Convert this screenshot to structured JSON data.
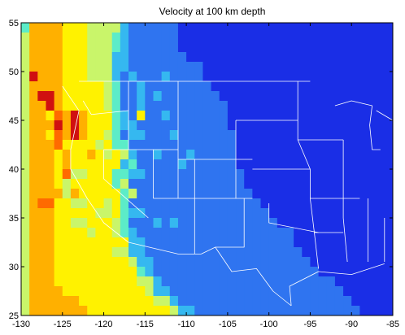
{
  "chart_data": {
    "type": "heatmap",
    "title": "Velocity at 100 km depth",
    "xlabel": "",
    "ylabel": "",
    "xlim": [
      -130,
      -85
    ],
    "ylim": [
      25,
      55
    ],
    "x_ticks": [
      -130,
      -125,
      -120,
      -115,
      -110,
      -105,
      -100,
      -95,
      -90,
      -85
    ],
    "y_ticks": [
      25,
      30,
      35,
      40,
      45,
      50,
      55
    ],
    "x_tick_labels": [
      "-130",
      "-125",
      "-120",
      "-115",
      "-110",
      "-105",
      "-100",
      "-95",
      "-90",
      "-85"
    ],
    "y_tick_labels": [
      "25",
      "30",
      "35",
      "40",
      "45",
      "50",
      "55"
    ],
    "grid": false,
    "colormap": "jet",
    "lon_step": 1,
    "lat_step": 1,
    "rows_top_to_bottom": [
      "4777766655553222222111111111111111111111111111",
      "5777766655543222222111111111111111111111111111",
      "5777766655543222222111111111111111111111111111",
      "5777766655533222222211111111111111111111111111",
      "5777766655533222222222111111111111111111111111",
      "5977766655532322232222111111111111111111111111",
      "5777766666542232222222211111111111111111111111",
      "5799766666542232322222221111111111111111111111",
      "5779766666542232222222222111111111111111111111",
      "5776879766643262232222222111111111111111111111",
      "5777979766643322222222222111111111111111111111",
      "5776879766542332223222222211111111111111111111",
      "5777866665644222222222222211111111111111111111",
      "5777676676565322322232222211111111111111111111",
      "5777676666663422222322222211111111111111111111",
      "5777685566644332222222222221111111111111111111",
      "5777656666645222222222222221111111111111111111",
      "5777757666664522222222222222111111111111111111",
      "5788665566564222222222222222211111111111111111",
      "5777666665564332222222222222221111111111111111",
      "5777665566654222323222222222222111111111111111",
      "5777666656654322222222222222222221111111111111",
      "5777666666666332222222222222222221111111111111",
      "5777666666655332222222222222222222111111111111",
      "5777666666666533222222222222222222211111111111",
      "5777666666666643222222222222222222221111111111",
      "5777666666666655322222222222222222222211111111",
      "5777766666666665332222222222222222222221111111",
      "5777777666666666553222222222222222222222111111",
      "5777777766666666665332222222222222222222211111"
    ],
    "value_scale": "1 = fast (blue) … 9 = slow (red)"
  },
  "colors": {
    "1": "#1a2ee6",
    "2": "#2f74f0",
    "3": "#35b8f0",
    "4": "#5cecc8",
    "5": "#c9f56a",
    "6": "#fff200",
    "7": "#ffb000",
    "8": "#ff6a00",
    "9": "#d01010"
  },
  "overlay_color": "#ffffff"
}
